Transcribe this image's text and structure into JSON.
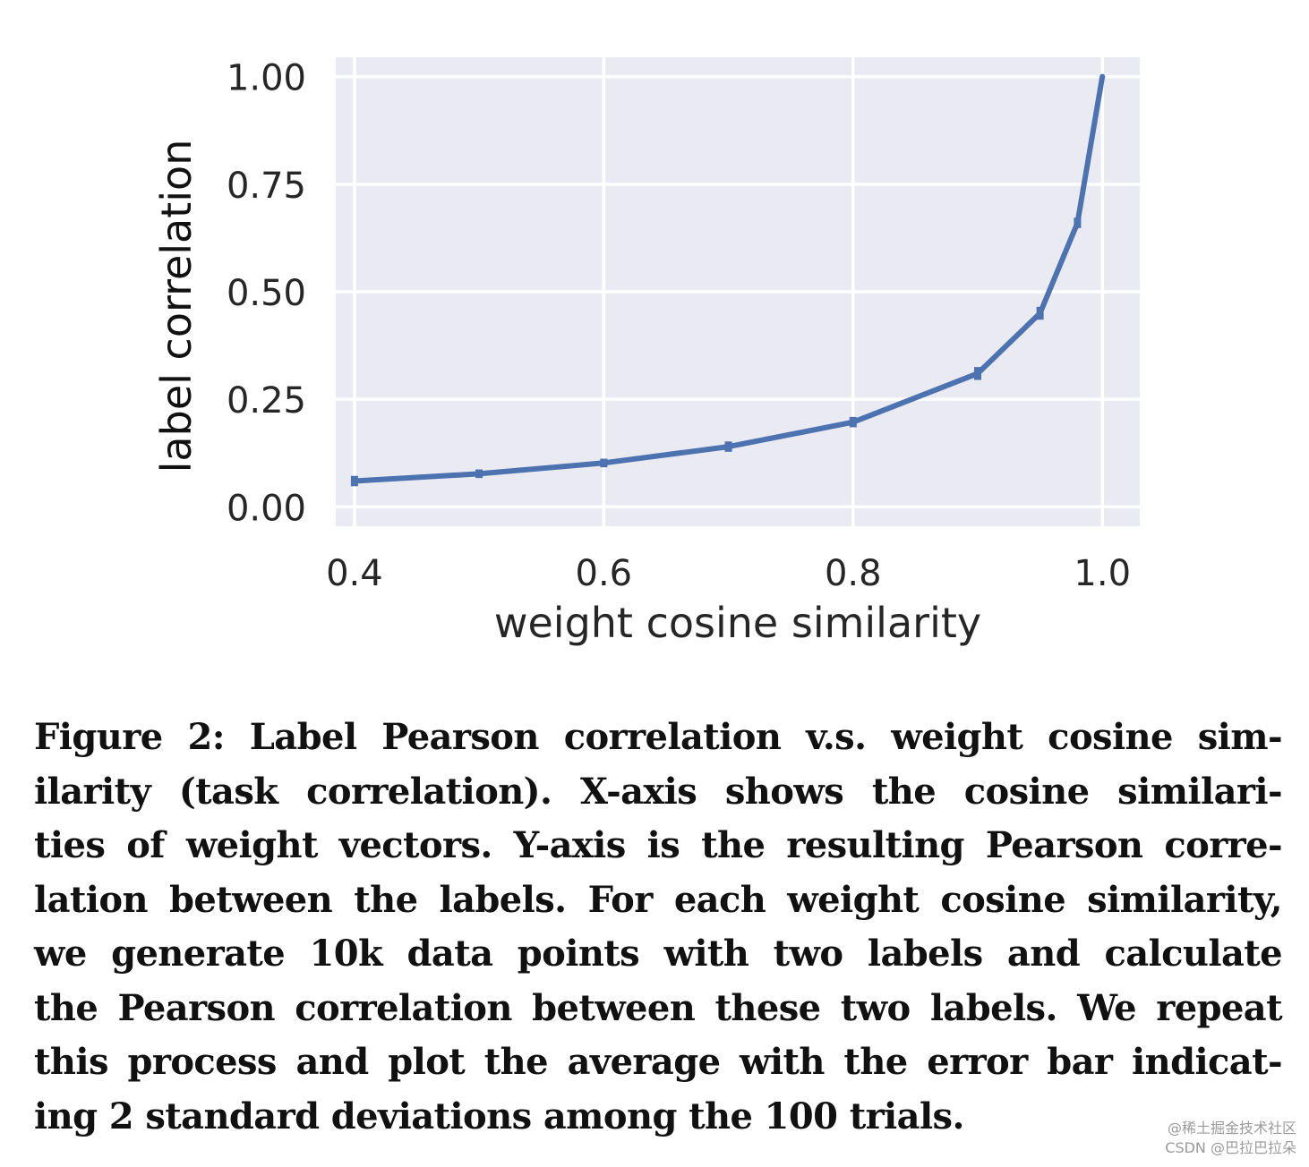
{
  "chart_data": {
    "type": "line",
    "title": "",
    "xlabel": "weight cosine similarity",
    "ylabel": "label correlation",
    "xlim": [
      0.385,
      1.03
    ],
    "ylim": [
      -0.045,
      1.045
    ],
    "grid": true,
    "xticks": [
      0.4,
      0.6,
      0.8,
      1.0
    ],
    "xtick_labels": [
      "0.4",
      "0.6",
      "0.8",
      "1.0"
    ],
    "yticks": [
      0.0,
      0.25,
      0.5,
      0.75,
      1.0
    ],
    "ytick_labels": [
      "0.00",
      "0.25",
      "0.50",
      "0.75",
      "1.00"
    ],
    "series": [
      {
        "name": "label correlation",
        "color": "#4c72b0",
        "x": [
          0.4,
          0.5,
          0.6,
          0.7,
          0.8,
          0.9,
          0.95,
          0.98,
          1.0
        ],
        "y": [
          0.06,
          0.077,
          0.102,
          0.14,
          0.197,
          0.31,
          0.45,
          0.66,
          1.0
        ],
        "error": [
          0.012,
          0.01,
          0.01,
          0.012,
          0.012,
          0.015,
          0.015,
          0.012,
          0.0
        ]
      }
    ],
    "colors": {
      "background": "#eaeaf2",
      "grid": "#ffffff",
      "text": "#262626"
    }
  },
  "caption": {
    "lines": [
      "Figure 2: Label Pearson correlation v.s. weight cosine sim-",
      "ilarity (task correlation). X-axis shows the cosine similari-",
      "ties of weight vectors. Y-axis is the resulting Pearson corre-",
      "lation between the labels. For each weight cosine similarity,",
      "we generate 10k data points with two labels and calculate",
      "the Pearson correlation between these two labels. We repeat",
      "this process and plot the average with the error bar indicat-",
      "ing 2 standard deviations among the 100 trials."
    ]
  },
  "watermark": {
    "line1": "@稀土掘金技术社区",
    "line2": "CSDN @巴拉巴拉朵"
  }
}
